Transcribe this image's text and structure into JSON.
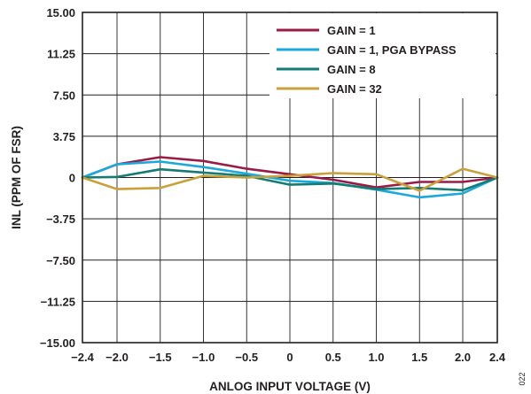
{
  "chart_data": {
    "type": "line",
    "title": "",
    "xlabel": "ANLOG INPUT VOLTAGE (V)",
    "ylabel": "INL (PPM OF FSR)",
    "xlim": [
      -2.4,
      2.4
    ],
    "ylim": [
      -15.0,
      15.0
    ],
    "x_ticks": [
      -2.4,
      -2.0,
      -1.5,
      -1.0,
      -0.5,
      0,
      0.5,
      1.0,
      1.5,
      2.0,
      2.4
    ],
    "x_tick_labels": [
      "−2.4",
      "−2.0",
      "−1.5",
      "−1.0",
      "−0.5",
      "0",
      "0.5",
      "1.0",
      "1.5",
      "2.0",
      "2.4"
    ],
    "y_ticks": [
      15.0,
      11.25,
      7.5,
      3.75,
      0,
      -3.75,
      -7.5,
      -11.25,
      -15.0
    ],
    "y_tick_labels": [
      "15.00",
      "11.25",
      "7.50",
      "3.75",
      "0",
      "−3.75",
      "−7.50",
      "−11.25",
      "−15.00"
    ],
    "grid": true,
    "legend_position": "top-right",
    "x": [
      -2.4,
      -2.0,
      -1.5,
      -1.0,
      -0.5,
      0,
      0.5,
      1.0,
      1.5,
      2.0,
      2.4
    ],
    "series": [
      {
        "name": "GAIN = 1",
        "color": "#9b1b47",
        "values": [
          0,
          1.2,
          1.85,
          1.5,
          0.8,
          0.3,
          -0.2,
          -0.9,
          -0.4,
          -0.4,
          0
        ]
      },
      {
        "name": "GAIN = 1, PGA BYPASS",
        "color": "#1ba9dc",
        "values": [
          0,
          1.2,
          1.45,
          0.95,
          0.35,
          -0.3,
          -0.5,
          -1.1,
          -1.8,
          -1.45,
          0
        ]
      },
      {
        "name": "GAIN = 8",
        "color": "#147c74",
        "values": [
          0,
          0.05,
          0.75,
          0.45,
          0.15,
          -0.65,
          -0.55,
          -1.05,
          -0.95,
          -1.15,
          0
        ]
      },
      {
        "name": "GAIN = 32",
        "color": "#c9a03a",
        "values": [
          0,
          -1.05,
          -0.95,
          0.15,
          0.0,
          0.15,
          0.4,
          0.3,
          -1.2,
          0.8,
          0
        ]
      }
    ],
    "figure_id": "022"
  }
}
